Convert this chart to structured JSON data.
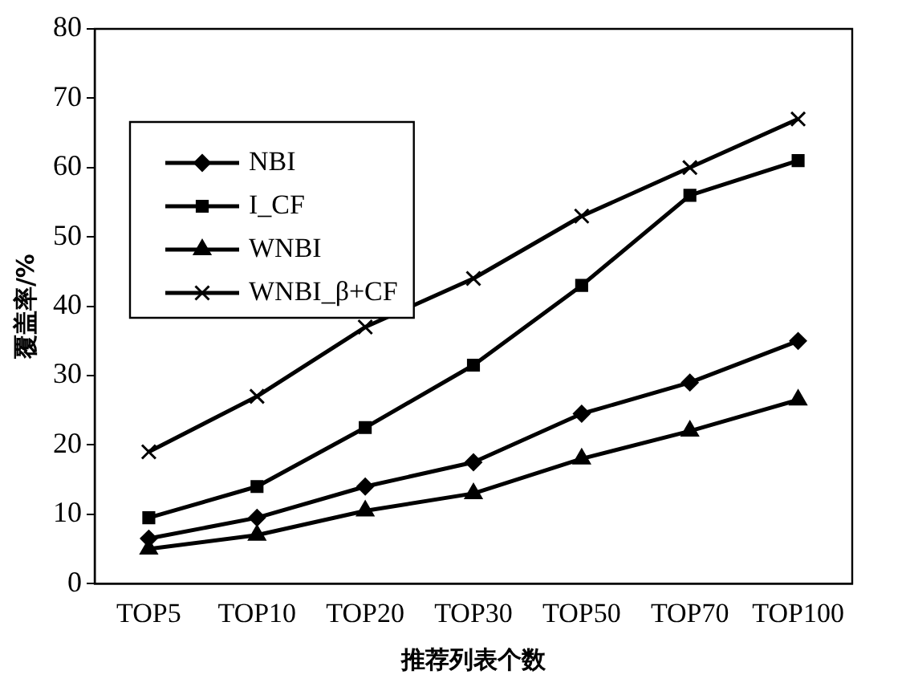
{
  "chart_data": {
    "type": "line",
    "xlabel": "推荐列表个数",
    "ylabel": "覆盖率/%",
    "categories": [
      "TOP5",
      "TOP10",
      "TOP20",
      "TOP30",
      "TOP50",
      "TOP70",
      "TOP100"
    ],
    "ylim": [
      0,
      80
    ],
    "yticks": [
      0,
      10,
      20,
      30,
      40,
      50,
      60,
      70,
      80
    ],
    "grid": false,
    "legend": "top left",
    "line_style": "solid",
    "series": [
      {
        "name": "NBI",
        "color": "#000000",
        "marker": "diamond",
        "values": [
          6.5,
          9.5,
          14,
          17.5,
          24.5,
          29,
          35
        ]
      },
      {
        "name": "I_CF",
        "color": "#000000",
        "marker": "square",
        "values": [
          9.5,
          14,
          22.5,
          31.5,
          43,
          56,
          61
        ]
      },
      {
        "name": "WNBI",
        "color": "#000000",
        "marker": "triangle",
        "values": [
          5,
          7,
          10.5,
          13,
          18,
          22,
          26.5
        ]
      },
      {
        "name": "WNBI_β+CF",
        "color": "#000000",
        "marker": "cross",
        "values": [
          19,
          27,
          37,
          44,
          53,
          60,
          67
        ]
      }
    ]
  }
}
